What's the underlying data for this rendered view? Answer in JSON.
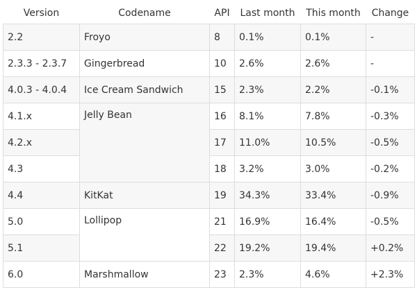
{
  "headers": {
    "version": "Version",
    "codename": "Codename",
    "api": "API",
    "last_month": "Last month",
    "this_month": "This month",
    "change": "Change"
  },
  "rows": [
    {
      "version": "2.2",
      "codename": "Froyo",
      "api": "8",
      "last_month": "0.1%",
      "this_month": "0.1%",
      "change": "-"
    },
    {
      "version": "2.3.3 - 2.3.7",
      "codename": "Gingerbread",
      "api": "10",
      "last_month": "2.6%",
      "this_month": "2.6%",
      "change": "-"
    },
    {
      "version": "4.0.3 - 4.0.4",
      "codename": "Ice Cream Sandwich",
      "api": "15",
      "last_month": "2.3%",
      "this_month": "2.2%",
      "change": "-0.1%"
    },
    {
      "version": "4.1.x",
      "codename": "Jelly Bean",
      "api": "16",
      "last_month": "8.1%",
      "this_month": "7.8%",
      "change": "-0.3%"
    },
    {
      "version": "4.2.x",
      "api": "17",
      "last_month": "11.0%",
      "this_month": "10.5%",
      "change": "-0.5%"
    },
    {
      "version": "4.3",
      "api": "18",
      "last_month": "3.2%",
      "this_month": "3.0%",
      "change": "-0.2%"
    },
    {
      "version": "4.4",
      "codename": "KitKat",
      "api": "19",
      "last_month": "34.3%",
      "this_month": "33.4%",
      "change": "-0.9%"
    },
    {
      "version": "5.0",
      "codename": "Lollipop",
      "api": "21",
      "last_month": "16.9%",
      "this_month": "16.4%",
      "change": "-0.5%"
    },
    {
      "version": "5.1",
      "api": "22",
      "last_month": "19.2%",
      "this_month": "19.4%",
      "change": "+0.2%"
    },
    {
      "version": "6.0",
      "codename": "Marshmallow",
      "api": "23",
      "last_month": "2.3%",
      "this_month": "4.6%",
      "change": "+2.3%"
    }
  ]
}
